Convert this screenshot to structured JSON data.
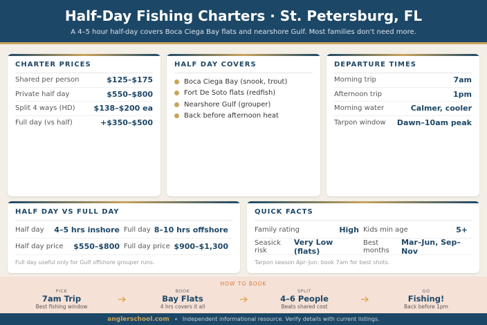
{
  "header": {
    "title": "Half-Day Fishing Charters · St. Petersburg, FL",
    "subtitle": "A 4–5 hour half-day covers Boca Ciega Bay flats and nearshore Gulf. Most families don't need more."
  },
  "charter_prices": {
    "title": "CHARTER PRICES",
    "rows": [
      [
        "Shared per person",
        "$125–$175"
      ],
      [
        "Private half day",
        "$550–$800"
      ],
      [
        "Split 4 ways (HD)",
        "$138–$200 ea"
      ],
      [
        "Full day (vs half)",
        "+$350–$500"
      ]
    ]
  },
  "half_day_covers": {
    "title": "HALF DAY COVERS",
    "items": [
      "Boca Ciega Bay (snook, trout)",
      "Fort De Soto flats (redfish)",
      "Nearshore Gulf (grouper)",
      "Back before afternoon heat"
    ]
  },
  "departure_times": {
    "title": "DEPARTURE TIMES",
    "rows": [
      [
        "Morning trip",
        "7am"
      ],
      [
        "Afternoon trip",
        "1pm"
      ],
      [
        "Morning water",
        "Calmer, cooler"
      ],
      [
        "Tarpon window",
        "Dawn–10am peak"
      ]
    ]
  },
  "comparison": {
    "title": "HALF DAY VS FULL DAY",
    "rows": [
      [
        "Half day",
        "4–5 hrs inshore",
        "Full day",
        "8–10 hrs offshore"
      ],
      [
        "Half day price",
        "$550–$800",
        "Full day price",
        "$900–$1,300"
      ]
    ],
    "note": "Full day useful only for Gulf offshore grouper runs."
  },
  "quick_facts": {
    "title": "QUICK FACTS",
    "rows": [
      [
        "Family rating",
        "High",
        "Kids min age",
        "5+"
      ],
      [
        "Seasick risk",
        "Very Low (flats)",
        "Best months",
        "Mar–Jun, Sep–Nov"
      ]
    ],
    "note": "Tarpon season Apr–Jun: book 7am for best shots."
  },
  "how_to_book": {
    "title": "HOW TO BOOK",
    "steps": [
      {
        "label": "PICK",
        "title": "7am Trip",
        "sub": "Best fishing window"
      },
      {
        "label": "BOOK",
        "title": "Bay Flats",
        "sub": "4 hrs covers it all"
      },
      {
        "label": "SPLIT",
        "title": "4–6 People",
        "sub": "Beats shared cost"
      },
      {
        "label": "GO",
        "title": "Fishing!",
        "sub": "Back before 1pm"
      }
    ]
  },
  "footer": {
    "site": "anglerschool.com",
    "text": "Independent informational resource. Verify details with current listings."
  }
}
